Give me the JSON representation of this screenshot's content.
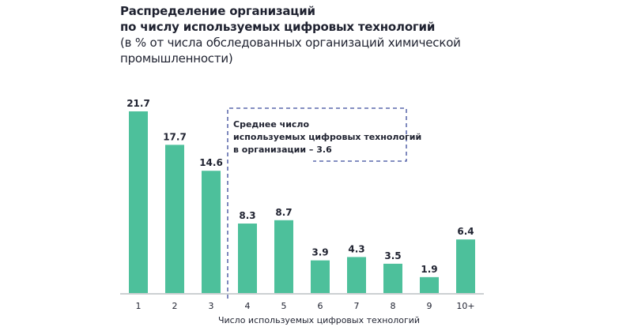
{
  "chart_data": {
    "type": "bar",
    "title": [
      "Распределение организаций",
      "по числу используемых цифровых технологий"
    ],
    "subtitle": [
      "(в % от числа обследованных организаций химической",
      "промышленности)"
    ],
    "xlabel": "Число используемых цифровых технологий",
    "ylabel": "",
    "categories": [
      "1",
      "2",
      "3",
      "4",
      "5",
      "6",
      "7",
      "8",
      "9",
      "10+"
    ],
    "values": [
      21.7,
      17.7,
      14.6,
      8.3,
      8.7,
      3.9,
      4.3,
      3.5,
      1.9,
      6.4
    ],
    "value_labels": [
      "21.7",
      "17.7",
      "14.6",
      "8.3",
      "8.7",
      "3.9",
      "4.3",
      "3.5",
      "1.9",
      "6.4"
    ],
    "ylim": [
      0,
      23.5
    ],
    "grid": false,
    "annotation": {
      "lines": [
        "Среднее число",
        "используемых цифровых технологий",
        "в организации – 3.6"
      ],
      "style": "dashed box"
    },
    "colors": {
      "bar": "#4dc09b",
      "axis": "#9aa0a6",
      "text": "#1f2230",
      "dashed_box": "#3b4a9c"
    }
  }
}
